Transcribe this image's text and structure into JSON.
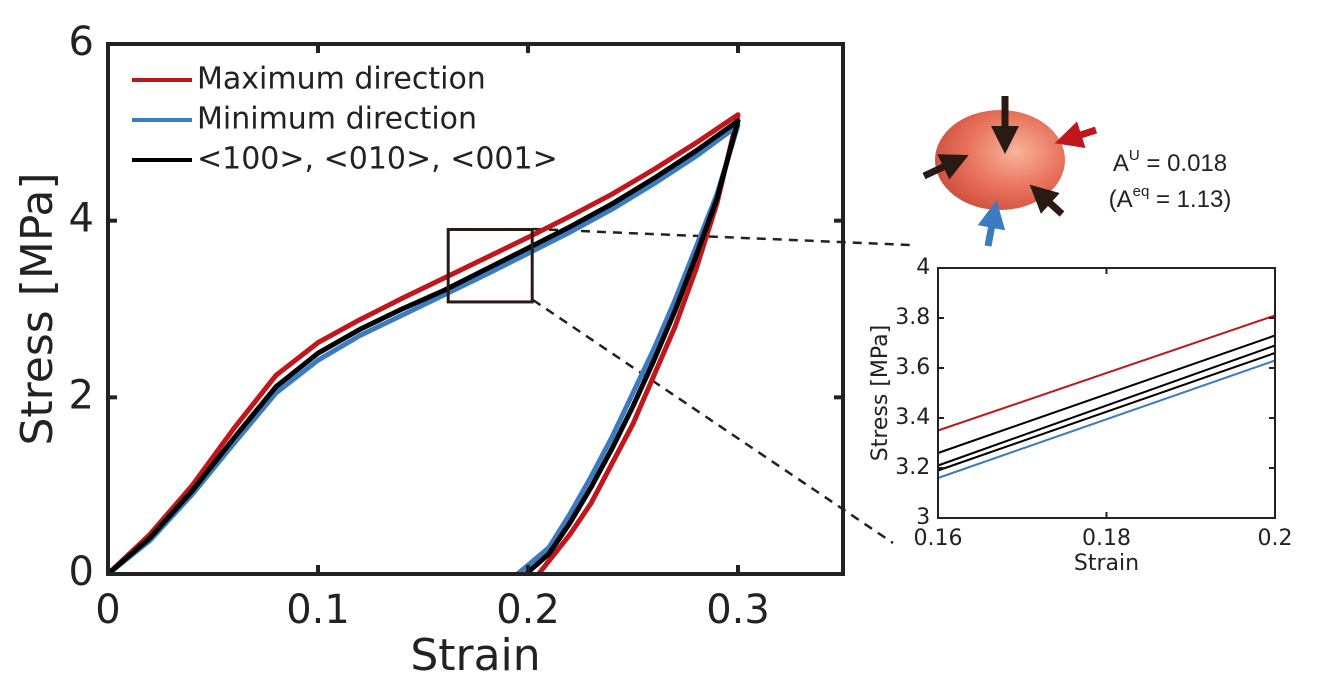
{
  "chart_data": [
    {
      "type": "line",
      "x_label": "Strain",
      "y_label": "Stress [MPa]",
      "xlim": [
        0,
        0.35
      ],
      "xticks": [
        0,
        0.1,
        0.2,
        0.3
      ],
      "ylim": [
        0,
        6
      ],
      "yticks": [
        0,
        2,
        4,
        6
      ],
      "legend": "upper left",
      "series": [
        {
          "name": "Maximum direction",
          "color": "#c0171c",
          "x": [
            0,
            0.02,
            0.04,
            0.06,
            0.08,
            0.1,
            0.12,
            0.14,
            0.16,
            0.18,
            0.2,
            0.22,
            0.24,
            0.26,
            0.28,
            0.3,
            0.29,
            0.28,
            0.27,
            0.26,
            0.25,
            0.24,
            0.23,
            0.22,
            0.21,
            0.205
          ],
          "values": [
            0,
            0.45,
            1.0,
            1.65,
            2.25,
            2.62,
            2.88,
            3.12,
            3.35,
            3.58,
            3.81,
            4.05,
            4.3,
            4.58,
            4.88,
            5.2,
            4.2,
            3.45,
            2.8,
            2.25,
            1.7,
            1.25,
            0.8,
            0.45,
            0.15,
            0
          ]
        },
        {
          "name": "Minimum direction",
          "color": "#3b7bbf",
          "x": [
            0,
            0.02,
            0.04,
            0.06,
            0.08,
            0.1,
            0.12,
            0.14,
            0.16,
            0.18,
            0.2,
            0.22,
            0.24,
            0.26,
            0.28,
            0.3,
            0.29,
            0.28,
            0.27,
            0.26,
            0.25,
            0.24,
            0.23,
            0.22,
            0.21,
            0.195
          ],
          "values": [
            0,
            0.38,
            0.9,
            1.48,
            2.05,
            2.42,
            2.7,
            2.93,
            3.16,
            3.39,
            3.63,
            3.87,
            4.13,
            4.42,
            4.73,
            5.08,
            4.3,
            3.7,
            3.1,
            2.55,
            2.05,
            1.55,
            1.1,
            0.68,
            0.3,
            0
          ]
        },
        {
          "name": "<100>, <010>, <001>",
          "color": "#000000",
          "x": [
            0,
            0.02,
            0.04,
            0.06,
            0.08,
            0.1,
            0.12,
            0.14,
            0.16,
            0.18,
            0.2,
            0.22,
            0.24,
            0.26,
            0.28,
            0.3,
            0.29,
            0.28,
            0.27,
            0.26,
            0.25,
            0.24,
            0.23,
            0.22,
            0.21,
            0.199
          ],
          "values": [
            0,
            0.41,
            0.94,
            1.54,
            2.12,
            2.5,
            2.77,
            3.0,
            3.21,
            3.45,
            3.69,
            3.93,
            4.19,
            4.48,
            4.79,
            5.13,
            4.25,
            3.6,
            2.98,
            2.42,
            1.9,
            1.42,
            0.98,
            0.58,
            0.23,
            0
          ]
        }
      ],
      "annotations": [
        {
          "base": "A",
          "sup": "U",
          "rest": " = 0.018"
        },
        {
          "base": "(A",
          "sup": "eq",
          "rest": " = 1.13)"
        }
      ]
    },
    {
      "type": "line",
      "x_label": "Strain",
      "y_label": "Stress [MPa]",
      "xlim": [
        0.16,
        0.2
      ],
      "xticks": [
        0.16,
        0.18,
        0.2
      ],
      "ylim": [
        3,
        4
      ],
      "yticks": [
        3,
        3.2,
        3.4,
        3.6,
        3.8,
        4
      ],
      "x": [
        0.16,
        0.2
      ],
      "series": [
        {
          "color": "#c0171c",
          "values": [
            3.35,
            3.81
          ]
        },
        {
          "color": "#000000",
          "values": [
            3.26,
            3.73
          ]
        },
        {
          "color": "#000000",
          "values": [
            3.21,
            3.69
          ]
        },
        {
          "color": "#000000",
          "values": [
            3.19,
            3.66
          ]
        },
        {
          "color": "#3b7bbf",
          "values": [
            3.16,
            3.63
          ]
        }
      ]
    }
  ]
}
